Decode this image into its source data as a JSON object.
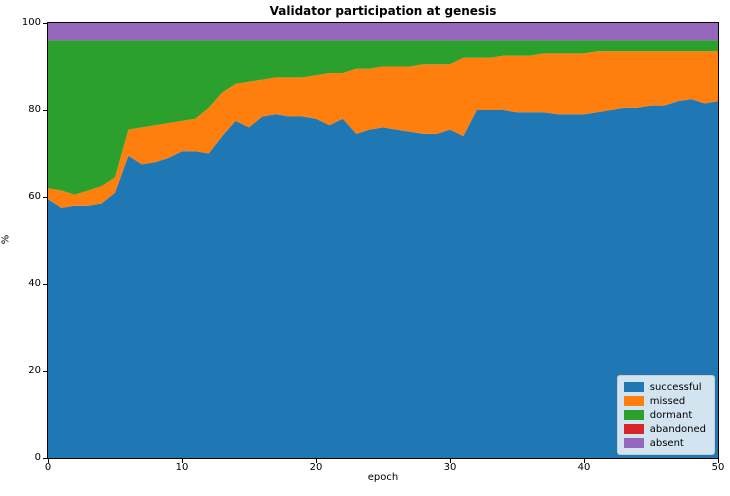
{
  "chart_data": {
    "type": "area",
    "stacked": true,
    "title": "Validator participation at genesis",
    "xlabel": "epoch",
    "ylabel": "%",
    "xlim": [
      0,
      50
    ],
    "ylim": [
      0,
      100
    ],
    "xticks": [
      0,
      10,
      20,
      30,
      40,
      50
    ],
    "yticks": [
      0,
      20,
      40,
      60,
      80,
      100
    ],
    "grid": false,
    "legend_position": "lower right",
    "x": [
      0,
      1,
      2,
      3,
      4,
      5,
      6,
      7,
      8,
      9,
      10,
      11,
      12,
      13,
      14,
      15,
      16,
      17,
      18,
      19,
      20,
      21,
      22,
      23,
      24,
      25,
      26,
      27,
      28,
      29,
      30,
      31,
      32,
      33,
      34,
      35,
      36,
      37,
      38,
      39,
      40,
      41,
      42,
      43,
      44,
      45,
      46,
      47,
      48,
      49,
      50
    ],
    "series": [
      {
        "name": "successful",
        "color": "#1f77b4",
        "values": [
          59.5,
          57.5,
          58,
          58,
          58.5,
          61,
          69.5,
          67.5,
          68,
          69,
          70.5,
          70.5,
          70,
          74,
          77.5,
          76,
          78.5,
          79,
          78.5,
          78.5,
          78,
          76.5,
          78,
          74.5,
          75.5,
          76,
          75.5,
          75,
          74.5,
          74.5,
          75.5,
          74,
          80,
          80,
          80,
          79.5,
          79.5,
          79.5,
          79,
          79,
          79,
          79.5,
          80,
          80.5,
          80.5,
          81,
          81,
          82,
          82.5,
          81.5,
          82
        ]
      },
      {
        "name": "missed",
        "color": "#ff7f0e",
        "values": [
          2.5,
          4,
          2.5,
          3.5,
          4,
          3.5,
          6,
          8.5,
          8.5,
          8,
          7,
          7.5,
          10.5,
          10,
          8.5,
          10.5,
          8.5,
          8.5,
          9,
          9,
          10,
          12,
          10.5,
          15,
          14,
          14,
          14.5,
          15,
          16,
          16,
          15,
          18,
          12,
          12,
          12.5,
          13,
          13,
          13.5,
          14,
          14,
          14,
          14,
          13.5,
          13,
          13,
          12.5,
          12.5,
          11.5,
          11,
          12,
          11.5
        ]
      },
      {
        "name": "dormant",
        "color": "#2ca02c",
        "values": [
          34,
          34.5,
          35.5,
          34.5,
          33.5,
          31.5,
          20.5,
          20,
          19.5,
          19,
          18.5,
          18,
          15.5,
          12,
          10,
          9.5,
          9,
          8.5,
          8.5,
          8.5,
          8,
          7.5,
          7.5,
          6.5,
          6.5,
          6,
          6,
          6,
          5.5,
          5.5,
          5.5,
          4,
          4,
          4,
          3.5,
          3.5,
          3.5,
          3,
          3,
          3,
          3,
          2.5,
          2.5,
          2.5,
          2.5,
          2.5,
          2.5,
          2.5,
          2.5,
          2.5,
          2.5
        ]
      },
      {
        "name": "abandoned",
        "color": "#d62728",
        "constant": 0
      },
      {
        "name": "absent",
        "color": "#9467bd",
        "constant": 4
      }
    ]
  }
}
